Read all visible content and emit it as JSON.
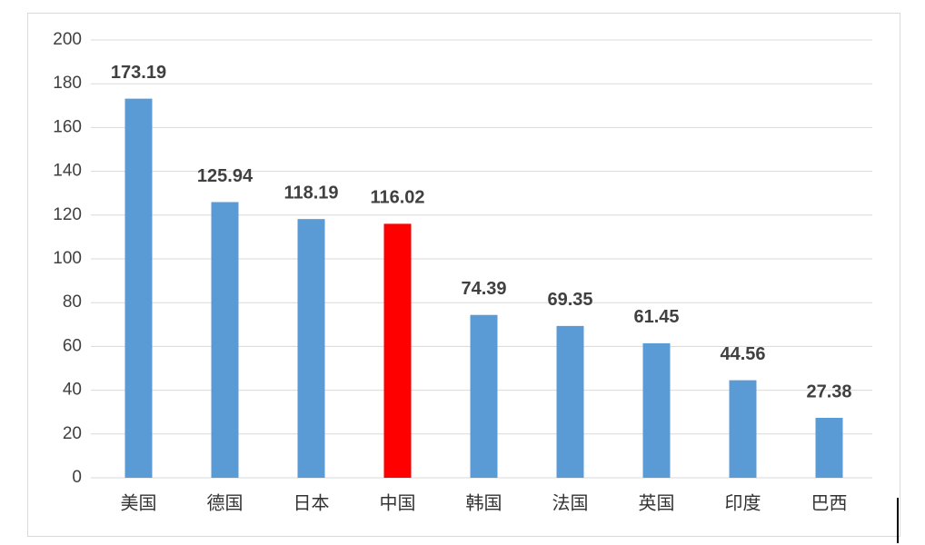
{
  "chart_data": {
    "type": "bar",
    "categories": [
      "美国",
      "德国",
      "日本",
      "中国",
      "韩国",
      "法国",
      "英国",
      "印度",
      "巴西"
    ],
    "values": [
      173.19,
      125.94,
      118.19,
      116.02,
      74.39,
      69.35,
      61.45,
      44.56,
      27.38
    ],
    "colors": [
      "#5b9bd5",
      "#5b9bd5",
      "#5b9bd5",
      "#ff0000",
      "#5b9bd5",
      "#5b9bd5",
      "#5b9bd5",
      "#5b9bd5",
      "#5b9bd5"
    ],
    "ylim": [
      0,
      200
    ],
    "yticks": [
      0,
      20,
      40,
      60,
      80,
      100,
      120,
      140,
      160,
      180,
      200
    ],
    "grid": true
  }
}
